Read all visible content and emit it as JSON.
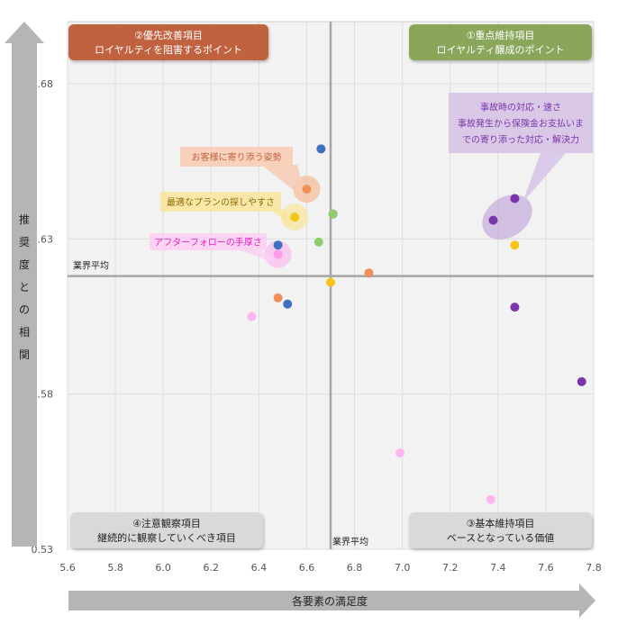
{
  "chart_data": {
    "type": "scatter",
    "xlabel": "各要素の満足度",
    "ylabel": "推奨度との相関",
    "xlim": [
      5.6,
      7.8
    ],
    "ylim": [
      0.53,
      0.7
    ],
    "x_ticks": [
      "5.6",
      "5.8",
      "6.0",
      "6.2",
      "6.4",
      "6.6",
      "6.8",
      "7.0",
      "7.2",
      "7.4",
      "7.6",
      "7.8"
    ],
    "y_ticks": [
      "0.53",
      "0.58",
      "0.63",
      "0.68"
    ],
    "grid": true,
    "industry_average": {
      "x": 6.7,
      "y": 0.618,
      "x_label": "業界平均",
      "y_label": "業界平均"
    },
    "quadrants": [
      {
        "id": "q1",
        "line1": "①重点維持項目",
        "line2": "ロイヤルティ醸成のポイント",
        "color": "#8aa65a"
      },
      {
        "id": "q2",
        "line1": "②優先改善項目",
        "line2": "ロイヤルティを阻害するポイント",
        "color": "#c0623f"
      },
      {
        "id": "q3",
        "line1": "③基本維持項目",
        "line2": "ベースとなっている価値",
        "color": "#d9d9d9"
      },
      {
        "id": "q4",
        "line1": "④注意観察項目",
        "line2": "継続的に観察していくべき項目",
        "color": "#d9d9d9"
      }
    ],
    "points": [
      {
        "x": 6.66,
        "y": 0.659,
        "color": "#3e6fc1"
      },
      {
        "x": 6.6,
        "y": 0.646,
        "color": "#f08f5a",
        "highlight": "#f5c4a6"
      },
      {
        "x": 6.71,
        "y": 0.638,
        "color": "#3e6fc1"
      },
      {
        "x": 6.71,
        "y": 0.638,
        "color": "#8fcc6e"
      },
      {
        "x": 6.55,
        "y": 0.637,
        "color": "#f5c518",
        "highlight": "#f8e8a8"
      },
      {
        "x": 6.65,
        "y": 0.629,
        "color": "#8fcc6e"
      },
      {
        "x": 6.48,
        "y": 0.628,
        "color": "#3e6fc1"
      },
      {
        "x": 6.48,
        "y": 0.625,
        "color": "#ff9be8",
        "highlight": "#f9c5ee"
      },
      {
        "x": 6.86,
        "y": 0.619,
        "color": "#f08f5a"
      },
      {
        "x": 6.7,
        "y": 0.616,
        "color": "#f5c518"
      },
      {
        "x": 6.48,
        "y": 0.611,
        "color": "#f08f5a"
      },
      {
        "x": 6.52,
        "y": 0.609,
        "color": "#3e6fc1"
      },
      {
        "x": 6.37,
        "y": 0.605,
        "color": "#ffb6f0"
      },
      {
        "x": 7.47,
        "y": 0.643,
        "color": "#7a35a8"
      },
      {
        "x": 7.38,
        "y": 0.636,
        "color": "#7a35a8"
      },
      {
        "x": 7.47,
        "y": 0.628,
        "color": "#f5c518"
      },
      {
        "x": 7.47,
        "y": 0.608,
        "color": "#7a35a8"
      },
      {
        "x": 7.75,
        "y": 0.584,
        "color": "#7a35a8"
      },
      {
        "x": 6.99,
        "y": 0.561,
        "color": "#ffb6f0"
      },
      {
        "x": 7.37,
        "y": 0.546,
        "color": "#ffb6f0"
      }
    ],
    "annotations": [
      {
        "text": "お客様に寄り添う姿勢",
        "color": "#c0623f",
        "bg": "#f7cdb5"
      },
      {
        "text": "最適なプランの探しやすさ",
        "color": "#8a6a00",
        "bg": "#f8e6a0"
      },
      {
        "text": "アフターフォローの手厚さ",
        "color": "#e020c0",
        "bg": "#fbd0f2"
      },
      {
        "text": [
          "事故時の対応・速さ",
          "事故発生から保険金お支払いま",
          "での寄り添った対応・解決力"
        ],
        "color": "#7a35a8",
        "bg": "#d6c4e6"
      }
    ]
  }
}
